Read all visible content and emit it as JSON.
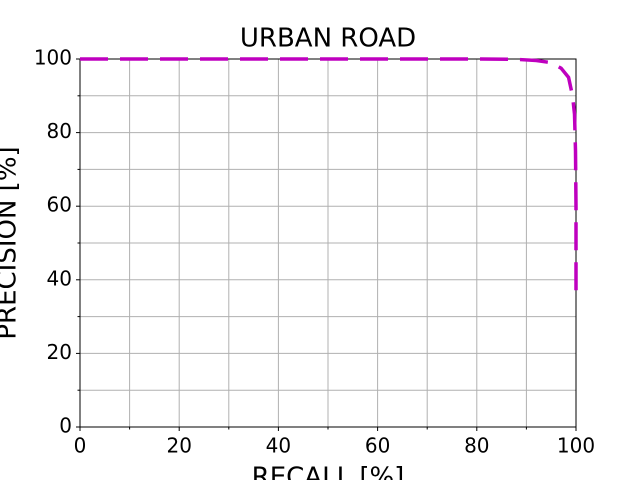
{
  "chart_data": {
    "type": "line",
    "title": "URBAN ROAD",
    "x_label": "RECALL [%]",
    "y_label": "PRECISION [%]",
    "xlim": [
      0,
      100
    ],
    "ylim": [
      0,
      100
    ],
    "xticks": [
      0,
      20,
      40,
      60,
      80,
      100
    ],
    "yticks": [
      0,
      20,
      40,
      60,
      80,
      100
    ],
    "xminor": [
      10,
      30,
      50,
      70,
      90
    ],
    "yminor": [
      10,
      30,
      50,
      70,
      90
    ],
    "grid": true,
    "series": [
      {
        "color": "#bf00bf",
        "x": [
          0,
          20,
          40,
          60,
          80,
          88,
          92,
          95,
          97,
          98.5,
          99.3,
          99.7,
          99.9,
          100,
          100
        ],
        "values": [
          100,
          100,
          100,
          100,
          100,
          99.9,
          99.6,
          99,
          97.5,
          95,
          90,
          85,
          75,
          60,
          35
        ]
      }
    ]
  }
}
